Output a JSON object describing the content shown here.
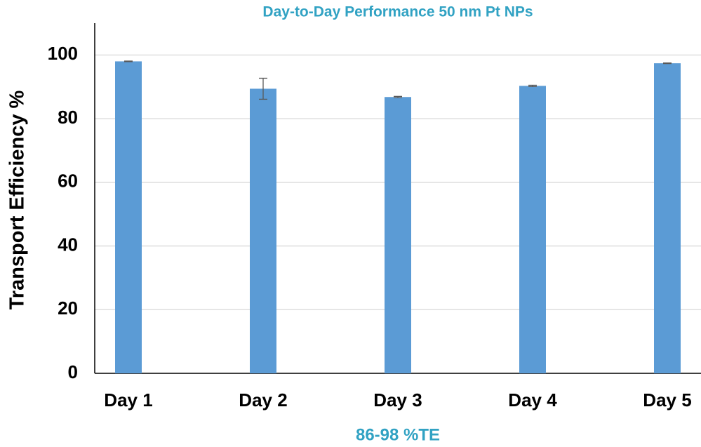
{
  "chart_data": {
    "type": "bar",
    "title": "Day-to-Day Performance 50 nm Pt NPs",
    "x_label": "86-98 %TE",
    "y_label": "Transport Efficiency %",
    "categories": [
      "Day 1",
      "Day 2",
      "Day 3",
      "Day 4",
      "Day 5"
    ],
    "values": [
      98.0,
      89.4,
      86.8,
      90.3,
      97.4
    ],
    "errors": [
      0.1,
      3.3,
      0.2,
      0.2,
      0.1
    ],
    "color": "#5b9bd5",
    "ylim": [
      0,
      110
    ],
    "yticks": [
      0,
      20,
      40,
      60,
      80,
      100
    ],
    "grid": true
  }
}
